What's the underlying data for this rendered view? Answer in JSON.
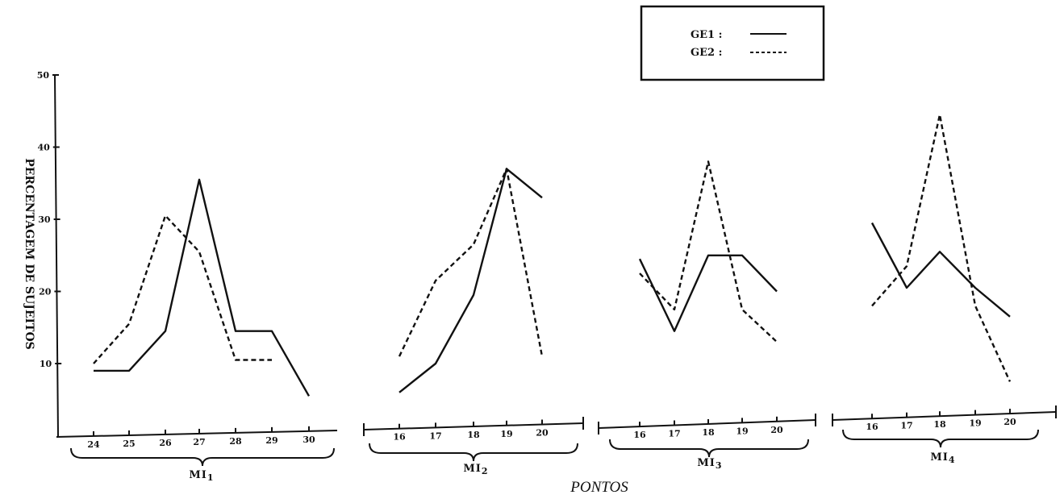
{
  "chart_data": {
    "type": "line",
    "xlabel": "PONTOS",
    "ylabel": "PERCENTAGEM DE SUJEITOS",
    "ylim": [
      0,
      50
    ],
    "yticks": [
      10,
      20,
      30,
      40,
      50
    ],
    "legend": {
      "position": "top-right",
      "entries": [
        {
          "name": "GE1 :",
          "style": "solid"
        },
        {
          "name": "GE2 :",
          "style": "dashed"
        }
      ]
    },
    "groups": [
      {
        "label": "MI1",
        "categories": [
          "24",
          "25",
          "26",
          "27",
          "28",
          "29",
          "30"
        ],
        "series": [
          {
            "name": "GE1",
            "values": [
              9,
              9,
              14.5,
              35.5,
              14.5,
              14.5,
              5.5
            ]
          },
          {
            "name": "GE2",
            "values": [
              10,
              15.5,
              30.5,
              25.5,
              10.5,
              10.5,
              null
            ]
          }
        ]
      },
      {
        "label": "MI2",
        "categories": [
          "16",
          "17",
          "18",
          "19",
          "20"
        ],
        "series": [
          {
            "name": "GE1",
            "values": [
              6,
              10,
              19.5,
              37,
              33
            ]
          },
          {
            "name": "GE2",
            "values": [
              11,
              21.5,
              26.5,
              37,
              11
            ]
          }
        ]
      },
      {
        "label": "MI3",
        "categories": [
          "16",
          "17",
          "18",
          "19",
          "20"
        ],
        "series": [
          {
            "name": "GE1",
            "values": [
              24.5,
              14.5,
              25,
              25,
              20
            ]
          },
          {
            "name": "GE2",
            "values": [
              22.5,
              17.5,
              38,
              17.5,
              13
            ]
          }
        ]
      },
      {
        "label": "MI4",
        "categories": [
          "16",
          "17",
          "18",
          "19",
          "20"
        ],
        "series": [
          {
            "name": "GE1",
            "values": [
              29.5,
              20.5,
              25.5,
              20.5,
              16.5
            ]
          },
          {
            "name": "GE2",
            "values": [
              18,
              23.5,
              44.5,
              18,
              7.5
            ]
          }
        ]
      }
    ]
  }
}
